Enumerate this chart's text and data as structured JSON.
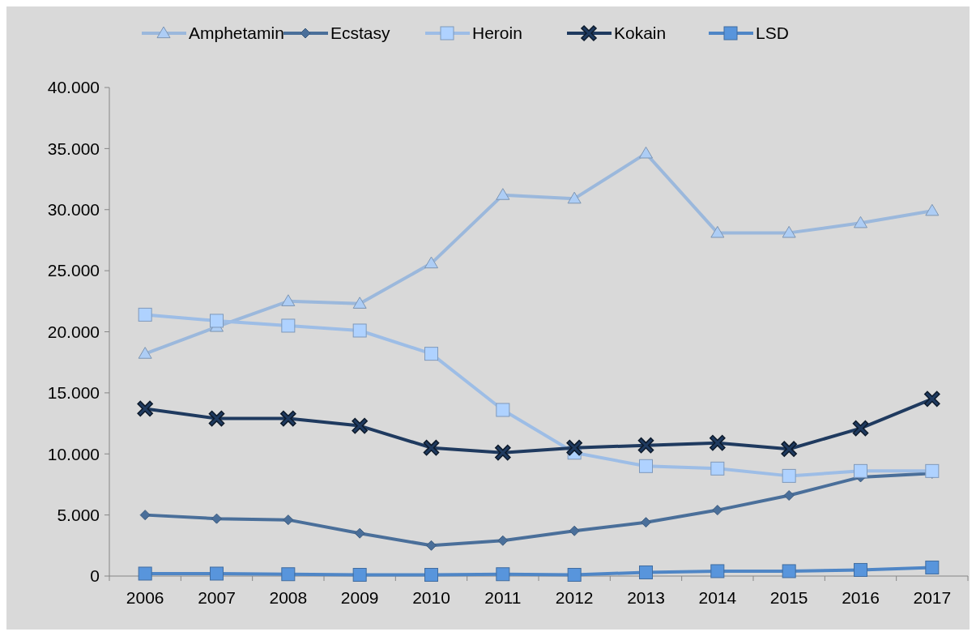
{
  "chart_data": {
    "type": "line",
    "categories": [
      "2006",
      "2007",
      "2008",
      "2009",
      "2010",
      "2011",
      "2012",
      "2013",
      "2014",
      "2015",
      "2016",
      "2017"
    ],
    "series": [
      {
        "name": "Amphetamin",
        "color": "#9bb8dc",
        "marker": "triangle",
        "values": [
          18200,
          20400,
          22500,
          22300,
          25600,
          31200,
          30900,
          34600,
          28100,
          28100,
          28900,
          29900
        ]
      },
      {
        "name": "Ecstasy",
        "color": "#4a6f9a",
        "marker": "diamond",
        "values": [
          5000,
          4700,
          4600,
          3500,
          2500,
          2900,
          3700,
          4400,
          5400,
          6600,
          8100,
          8400
        ]
      },
      {
        "name": "Heroin",
        "color": "#9dbde6",
        "marker": "square",
        "values": [
          21400,
          20900,
          20500,
          20100,
          18200,
          13600,
          10100,
          9000,
          8800,
          8200,
          8600,
          8600
        ]
      },
      {
        "name": "Kokain",
        "color": "#1f3a5f",
        "marker": "cross",
        "values": [
          13700,
          12900,
          12900,
          12300,
          10500,
          10100,
          10500,
          10700,
          10900,
          10400,
          12100,
          14500
        ]
      },
      {
        "name": "LSD",
        "color": "#4f86c6",
        "marker": "square",
        "values": [
          200,
          200,
          150,
          100,
          100,
          150,
          100,
          300,
          400,
          400,
          500,
          700
        ]
      }
    ],
    "ylim": [
      0,
      40000
    ],
    "yticks": [
      {
        "value": 0,
        "label": "0"
      },
      {
        "value": 5000,
        "label": "5.000"
      },
      {
        "value": 10000,
        "label": "10.000"
      },
      {
        "value": 15000,
        "label": "15.000"
      },
      {
        "value": 20000,
        "label": "20.000"
      },
      {
        "value": 25000,
        "label": "25.000"
      },
      {
        "value": 30000,
        "label": "30.000"
      },
      {
        "value": 35000,
        "label": "35.000"
      },
      {
        "value": 40000,
        "label": "40.000"
      }
    ],
    "grid": false,
    "legend": "top",
    "line_style": "solid"
  }
}
